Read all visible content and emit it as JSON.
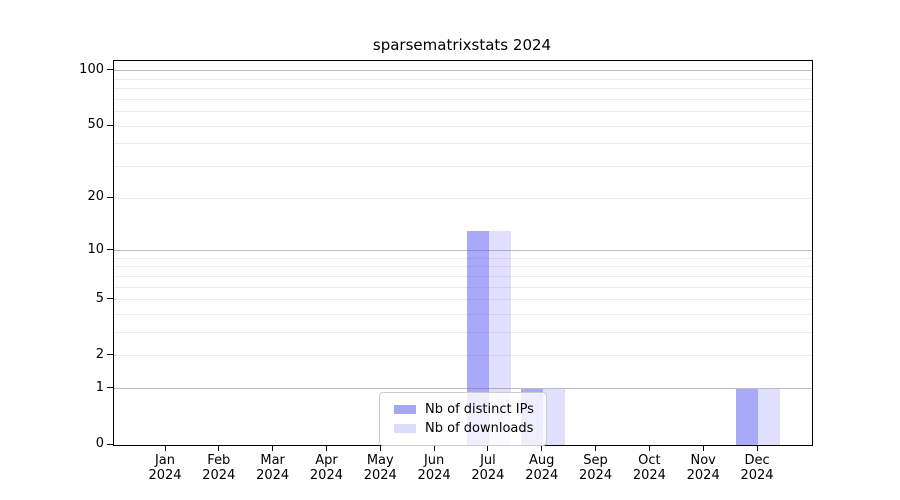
{
  "title": "sparsematrixstats 2024",
  "chart_data": {
    "type": "bar",
    "title": "sparsematrixstats 2024",
    "categories": [
      "Jan",
      "Feb",
      "Mar",
      "Apr",
      "May",
      "Jun",
      "Jul",
      "Aug",
      "Sep",
      "Oct",
      "Nov",
      "Dec"
    ],
    "year_label": "2024",
    "series": [
      {
        "name": "Nb of distinct IPs",
        "color": "rgba(99,101,240,0.55)",
        "color_hex_on_white": "#a6a7f3",
        "values": [
          0,
          0,
          0,
          0,
          0,
          0,
          13,
          1,
          0,
          0,
          0,
          1
        ]
      },
      {
        "name": "Nb of downloads",
        "color": "rgba(99,101,240,0.2)",
        "color_hex_on_white": "#dcddf9",
        "values": [
          0,
          0,
          0,
          0,
          0,
          0,
          13,
          1,
          0,
          0,
          0,
          1
        ]
      }
    ],
    "y_scale": "log10(1+v)",
    "ylim": [
      0,
      113
    ],
    "y_tick_labels": [
      100,
      50,
      20,
      10,
      5,
      2,
      1,
      0
    ],
    "y_gridline_values": [
      100,
      90,
      80,
      70,
      60,
      50,
      40,
      30,
      20,
      10,
      9,
      8,
      7,
      6,
      5,
      4,
      3,
      2,
      1
    ],
    "y_decade_values": [
      100,
      10,
      1
    ],
    "grid": true,
    "legend_position": "lower center",
    "colors": {
      "decade_gridline": "#bdbdbd",
      "minor_gridline": "#ececec",
      "axis_spine": "#000000",
      "text": "#000000",
      "background": "#ffffff"
    }
  }
}
